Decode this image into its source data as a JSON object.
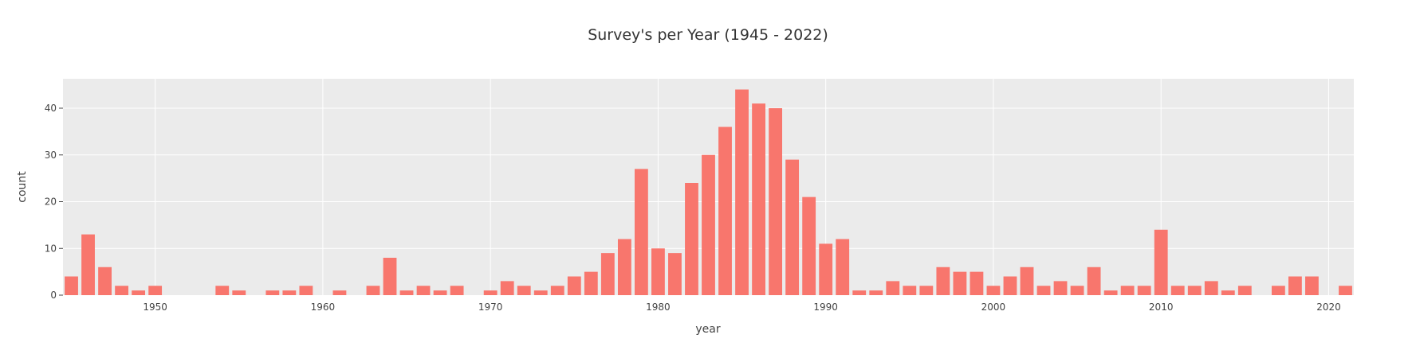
{
  "chart_data": {
    "type": "bar",
    "title": "Survey's per Year (1945 - 2022)",
    "xlabel": "year",
    "ylabel": "count",
    "xlim": [
      1944.5,
      2021.5
    ],
    "ylim": [
      0,
      46.3
    ],
    "xticks": [
      1950,
      1960,
      1970,
      1980,
      1990,
      2000,
      2010,
      2020
    ],
    "yticks": [
      0,
      10,
      20,
      30,
      40
    ],
    "grid": true,
    "legend": "none",
    "bar_color": "#F8766D",
    "plot_bg": "#EBEBEB",
    "grid_color": "#FFFFFF",
    "x": [
      1945,
      1946,
      1947,
      1948,
      1949,
      1950,
      1954,
      1955,
      1957,
      1958,
      1959,
      1961,
      1963,
      1964,
      1965,
      1966,
      1967,
      1968,
      1970,
      1971,
      1972,
      1973,
      1974,
      1975,
      1976,
      1977,
      1978,
      1979,
      1980,
      1981,
      1982,
      1983,
      1984,
      1985,
      1986,
      1987,
      1988,
      1989,
      1990,
      1991,
      1992,
      1993,
      1994,
      1995,
      1996,
      1997,
      1998,
      1999,
      2000,
      2001,
      2002,
      2003,
      2004,
      2005,
      2006,
      2007,
      2008,
      2009,
      2010,
      2011,
      2012,
      2013,
      2014,
      2015,
      2017,
      2018,
      2019,
      2021
    ],
    "values": [
      4,
      13,
      6,
      2,
      1,
      2,
      2,
      1,
      1,
      1,
      2,
      1,
      2,
      8,
      1,
      2,
      1,
      2,
      1,
      3,
      2,
      1,
      2,
      4,
      5,
      9,
      12,
      27,
      10,
      9,
      24,
      30,
      36,
      44,
      41,
      40,
      29,
      21,
      11,
      12,
      1,
      1,
      3,
      2,
      2,
      6,
      5,
      5,
      2,
      4,
      6,
      2,
      3,
      2,
      6,
      1,
      2,
      2,
      14,
      2,
      2,
      3,
      1,
      2,
      2,
      4,
      4,
      2
    ]
  }
}
